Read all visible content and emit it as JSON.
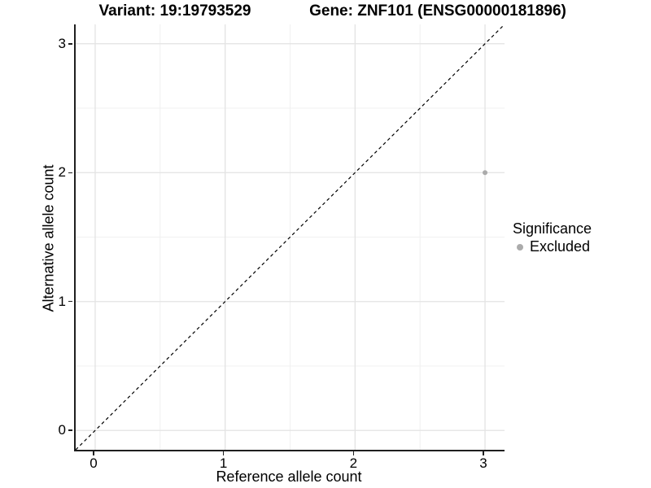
{
  "chart_data": {
    "type": "scatter",
    "titles": [
      "Variant: 19:19793529",
      "Gene: ZNF101 (ENSG00000181896)"
    ],
    "xlabel": "Reference allele count",
    "ylabel": "Alternative allele count",
    "xlim": [
      -0.15,
      3.15
    ],
    "ylim": [
      -0.15,
      3.15
    ],
    "x_ticks": [
      0,
      1,
      2,
      3
    ],
    "y_ticks": [
      0,
      1,
      2,
      3
    ],
    "x_minor_ticks": [
      0.5,
      1.5,
      2.5
    ],
    "y_minor_ticks": [
      0.5,
      1.5,
      2.5
    ],
    "grid": "major and minor, light gray on white",
    "points": [
      {
        "x": 3,
        "y": 2,
        "series": "Excluded",
        "color": "#ababab",
        "radius": 3
      }
    ],
    "reference_line": {
      "slope": 1,
      "intercept": 0,
      "style": "dashed",
      "color": "#000000"
    },
    "legend": {
      "title": "Significance",
      "position": "right",
      "entries": [
        {
          "label": "Excluded",
          "color": "#ababab"
        }
      ]
    },
    "colors": {
      "background": "#ffffff",
      "grid_major": "#e3e3e3",
      "grid_minor": "#f0f0f0",
      "axis_line": "#1f1f1f",
      "tick_mark": "#1f1f1f",
      "text": "#000000"
    }
  }
}
